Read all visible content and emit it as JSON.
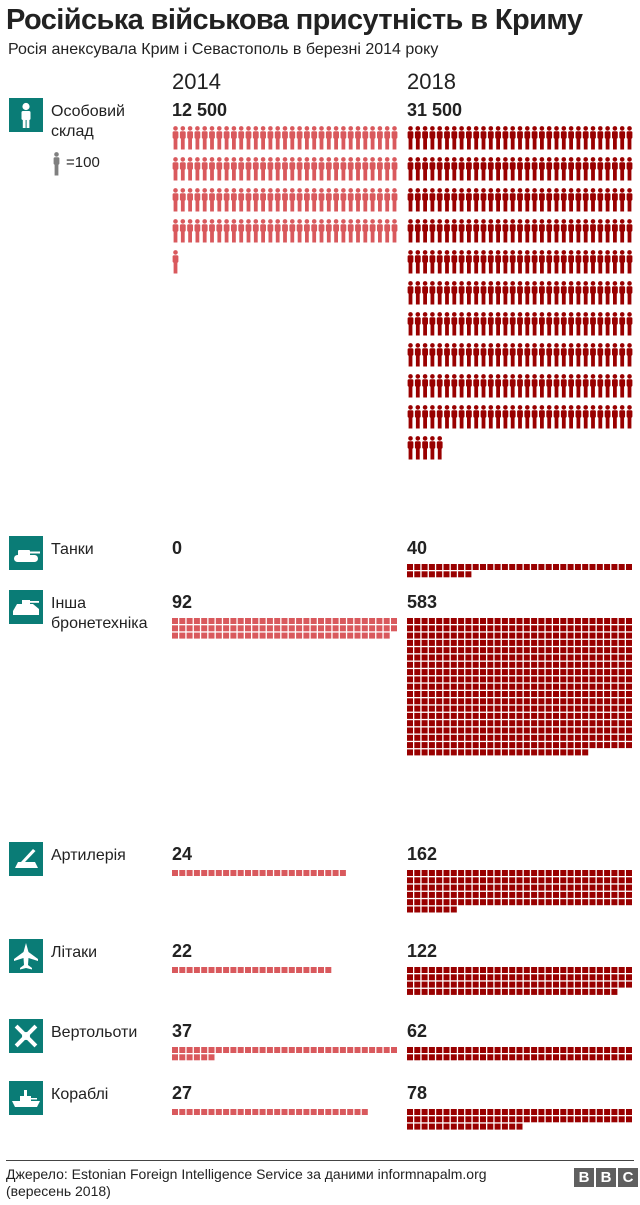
{
  "header": {
    "title": "Російська військова присутність в Криму",
    "subtitle": "Росія анексувала Крим і Севастополь в березні 2014 року"
  },
  "years": {
    "left": "2014",
    "right": "2018"
  },
  "legend": {
    "unit_label": "=100"
  },
  "footer": {
    "source_line1": "Джерело: Estonian Foreign Intelligence Service за даними informnapalm.org",
    "source_line2": "(вересень 2018)",
    "logo": [
      "B",
      "B",
      "C"
    ]
  },
  "colors": {
    "series_2014": "#d9595d",
    "series_2018": "#990000",
    "icon_bg": "#0a7c76",
    "legend_person": "#7f7f7f"
  },
  "chart_data": {
    "type": "pictogram",
    "series": [
      {
        "name": "2014",
        "color": "#d9595d"
      },
      {
        "name": "2018",
        "color": "#990000"
      }
    ],
    "categories": [
      {
        "key": "personnel",
        "label": [
          "Особовий",
          "склад"
        ],
        "icon": "soldier-icon",
        "unit": 100,
        "labels": [
          "12 500",
          "31 500"
        ],
        "values": [
          12500,
          31500
        ]
      },
      {
        "key": "tanks",
        "label": [
          "Танки"
        ],
        "icon": "tank-icon",
        "unit": 1,
        "labels": [
          "0",
          "40"
        ],
        "values": [
          0,
          40
        ]
      },
      {
        "key": "armored",
        "label": [
          "Інша",
          "бронетехніка"
        ],
        "icon": "armored-vehicle-icon",
        "unit": 1,
        "labels": [
          "92",
          "583"
        ],
        "values": [
          92,
          583
        ]
      },
      {
        "key": "artillery",
        "label": [
          "Артилерія"
        ],
        "icon": "artillery-icon",
        "unit": 1,
        "labels": [
          "24",
          "162"
        ],
        "values": [
          24,
          162
        ]
      },
      {
        "key": "aircraft",
        "label": [
          "Літаки"
        ],
        "icon": "jet-icon",
        "unit": 1,
        "labels": [
          "22",
          "122"
        ],
        "values": [
          22,
          122
        ]
      },
      {
        "key": "helicopters",
        "label": [
          "Вертольоти"
        ],
        "icon": "helicopter-icon",
        "unit": 1,
        "labels": [
          "37",
          "62"
        ],
        "values": [
          37,
          62
        ]
      },
      {
        "key": "ships",
        "label": [
          "Кораблі"
        ],
        "icon": "ship-icon",
        "unit": 1,
        "labels": [
          "27",
          "78"
        ],
        "values": [
          27,
          78
        ]
      }
    ]
  }
}
